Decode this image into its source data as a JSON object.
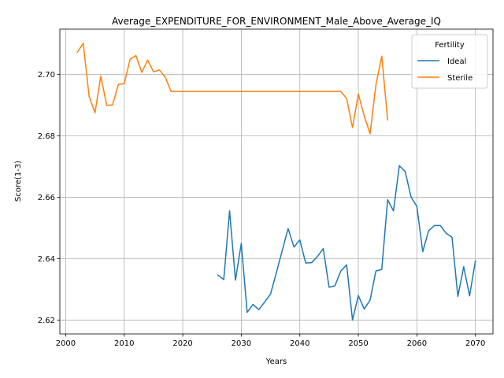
{
  "chart_data": {
    "type": "line",
    "title": "Average_EXPENDITURE_FOR_ENVIRONMENT_Male_Above_Average_IQ",
    "xlabel": "Years",
    "ylabel": "Score(1-3)",
    "xlim": [
      1999,
      2073
    ],
    "ylim": [
      2.6155,
      2.7148
    ],
    "xticks": [
      2000,
      2010,
      2020,
      2030,
      2040,
      2050,
      2060,
      2070
    ],
    "yticks": [
      2.62,
      2.64,
      2.66,
      2.68,
      2.7
    ],
    "ytick_labels": [
      "2.62",
      "2.64",
      "2.66",
      "2.68",
      "2.70"
    ],
    "grid": true,
    "legend": {
      "title": "Fertility",
      "placement": "top-right"
    },
    "series": [
      {
        "name": "Ideal",
        "color": "#1f77b4",
        "x": [
          2026,
          2027,
          2028,
          2029,
          2030,
          2031,
          2032,
          2033,
          2034,
          2035,
          2036,
          2037,
          2038,
          2039,
          2040,
          2041,
          2042,
          2043,
          2044,
          2045,
          2046,
          2047,
          2048,
          2049,
          2050,
          2051,
          2052,
          2053,
          2054,
          2055,
          2056,
          2057,
          2058,
          2059,
          2060,
          2061,
          2062,
          2063,
          2064,
          2065,
          2066,
          2067,
          2068,
          2069,
          2070
        ],
        "y": [
          2.6347,
          2.6332,
          2.6556,
          2.633,
          2.645,
          2.6225,
          2.6251,
          2.6234,
          2.6259,
          2.6285,
          2.6355,
          2.6427,
          2.6498,
          2.6438,
          2.6461,
          2.6386,
          2.6387,
          2.6407,
          2.6433,
          2.6307,
          2.6312,
          2.636,
          2.638,
          2.62,
          2.628,
          2.6236,
          2.6265,
          2.636,
          2.6365,
          2.6592,
          2.6556,
          2.6703,
          2.6684,
          2.6601,
          2.657,
          2.6423,
          2.6491,
          2.6508,
          2.6508,
          2.6483,
          2.647,
          2.6277,
          2.6374,
          2.6279,
          2.6393
        ]
      },
      {
        "name": "Sterile",
        "color": "#ff7f0e",
        "x": [
          2002,
          2003,
          2004,
          2005,
          2006,
          2007,
          2008,
          2009,
          2010,
          2011,
          2012,
          2013,
          2014,
          2015,
          2016,
          2017,
          2018,
          2019,
          2020,
          2021,
          2022,
          2023,
          2024,
          2025,
          2026,
          2027,
          2028,
          2029,
          2030,
          2031,
          2032,
          2033,
          2034,
          2035,
          2036,
          2037,
          2038,
          2039,
          2040,
          2041,
          2042,
          2043,
          2044,
          2045,
          2046,
          2047,
          2048,
          2049,
          2050,
          2051,
          2052,
          2053,
          2054,
          2055
        ],
        "y": [
          2.7073,
          2.7102,
          2.6929,
          2.6875,
          2.6995,
          2.69,
          2.6901,
          2.6968,
          2.697,
          2.705,
          2.7062,
          2.7007,
          2.7047,
          2.7009,
          2.7015,
          2.6992,
          2.6945,
          2.6945,
          2.6945,
          2.6945,
          2.6945,
          2.6945,
          2.6945,
          2.6945,
          2.6945,
          2.6945,
          2.6945,
          2.6945,
          2.6945,
          2.6945,
          2.6945,
          2.6945,
          2.6945,
          2.6945,
          2.6945,
          2.6945,
          2.6945,
          2.6945,
          2.6945,
          2.6945,
          2.6945,
          2.6945,
          2.6945,
          2.6945,
          2.6945,
          2.6945,
          2.6922,
          2.6827,
          2.6937,
          2.6865,
          2.6807,
          2.6966,
          2.706,
          2.6852
        ]
      }
    ]
  }
}
